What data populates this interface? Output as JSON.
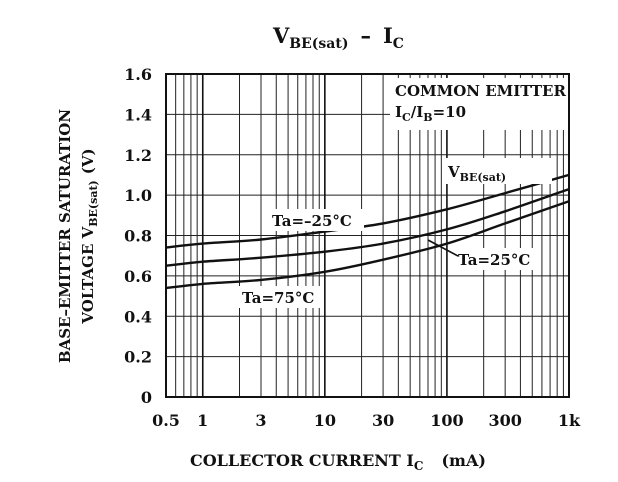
{
  "chart_data": {
    "type": "line",
    "title": "V",
    "title_sub": "BE(sat)",
    "title_sep": "–",
    "title_rhs": "I",
    "title_rhs_sub": "C",
    "xlabel": "COLLECTOR  CURRENT  I",
    "xlabel_sub": "C",
    "xlabel_unit": "(mA)",
    "ylabel_line1": "BASE–EMITTER  SATURATION",
    "ylabel_line2": "VOLTAGE  V",
    "ylabel_line2_sub": "BE(sat)",
    "ylabel_line2_unit": "(V)",
    "x_scale": "log",
    "xlim": [
      0.5,
      1000
    ],
    "ylim": [
      0,
      1.6
    ],
    "grid": true,
    "x_ticks": [
      {
        "value": 0.5,
        "label": "0.5"
      },
      {
        "value": 1,
        "label": "1"
      },
      {
        "value": 3,
        "label": "3"
      },
      {
        "value": 10,
        "label": "10"
      },
      {
        "value": 30,
        "label": "30"
      },
      {
        "value": 100,
        "label": "100"
      },
      {
        "value": 300,
        "label": "300"
      },
      {
        "value": 1000,
        "label": "1k"
      }
    ],
    "y_ticks": [
      {
        "value": 0,
        "label": "0"
      },
      {
        "value": 0.2,
        "label": "0.2"
      },
      {
        "value": 0.4,
        "label": "0.4"
      },
      {
        "value": 0.6,
        "label": "0.6"
      },
      {
        "value": 0.8,
        "label": "0.8"
      },
      {
        "value": 1.0,
        "label": "1.0"
      },
      {
        "value": 1.2,
        "label": "1.2"
      },
      {
        "value": 1.4,
        "label": "1.4"
      },
      {
        "value": 1.6,
        "label": "1.6"
      }
    ],
    "annotations": {
      "condition_line1": "COMMON  EMITTER",
      "condition_line2": "I",
      "condition_line2_sub1": "C",
      "condition_line2_mid": "/I",
      "condition_line2_sub2": "B",
      "condition_line2_end": "=10",
      "curve_label": "V",
      "curve_label_sub": "BE(sat)"
    },
    "series": [
      {
        "name": "Ta=–25°C",
        "x": [
          0.5,
          1,
          3,
          10,
          30,
          100,
          300,
          1000
        ],
        "y": [
          0.74,
          0.76,
          0.78,
          0.82,
          0.86,
          0.93,
          1.01,
          1.1
        ]
      },
      {
        "name": "Ta=25°C",
        "x": [
          0.5,
          1,
          3,
          10,
          30,
          100,
          300,
          1000
        ],
        "y": [
          0.65,
          0.67,
          0.69,
          0.72,
          0.76,
          0.83,
          0.92,
          1.03
        ]
      },
      {
        "name": "Ta=75°C",
        "x": [
          0.5,
          1,
          3,
          10,
          30,
          100,
          300,
          1000
        ],
        "y": [
          0.54,
          0.56,
          0.58,
          0.62,
          0.68,
          0.76,
          0.86,
          0.97
        ]
      }
    ]
  }
}
